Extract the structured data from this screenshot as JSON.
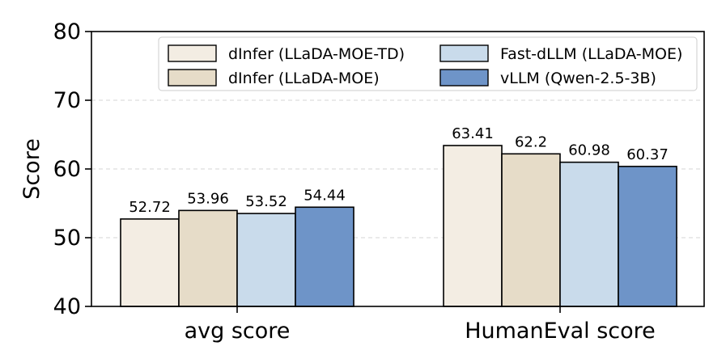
{
  "chart_data": {
    "type": "bar",
    "title": "",
    "xlabel": "",
    "ylabel": "Score",
    "ylim": [
      40,
      80
    ],
    "yticks": [
      40,
      50,
      60,
      70,
      80
    ],
    "grid": true,
    "legend_position": "top-right",
    "legend_columns": 2,
    "categories": [
      "avg score",
      "HumanEval score"
    ],
    "series": [
      {
        "name": "dInfer (LLaDA-MOE-TD)",
        "color": "#f3ede3",
        "values": [
          52.72,
          63.41
        ],
        "labels": [
          "52.72",
          "63.41"
        ]
      },
      {
        "name": "dInfer (LLaDA-MOE)",
        "color": "#e6dcc8",
        "values": [
          53.96,
          62.2
        ],
        "labels": [
          "53.96",
          "62.2"
        ]
      },
      {
        "name": "Fast-dLLM (LLaDA-MOE)",
        "color": "#c9dbeb",
        "values": [
          53.52,
          60.98
        ],
        "labels": [
          "53.52",
          "60.98"
        ]
      },
      {
        "name": "vLLM (Qwen-2.5-3B)",
        "color": "#6e94c8",
        "values": [
          54.44,
          60.37
        ],
        "labels": [
          "54.44",
          "60.37"
        ]
      }
    ]
  }
}
